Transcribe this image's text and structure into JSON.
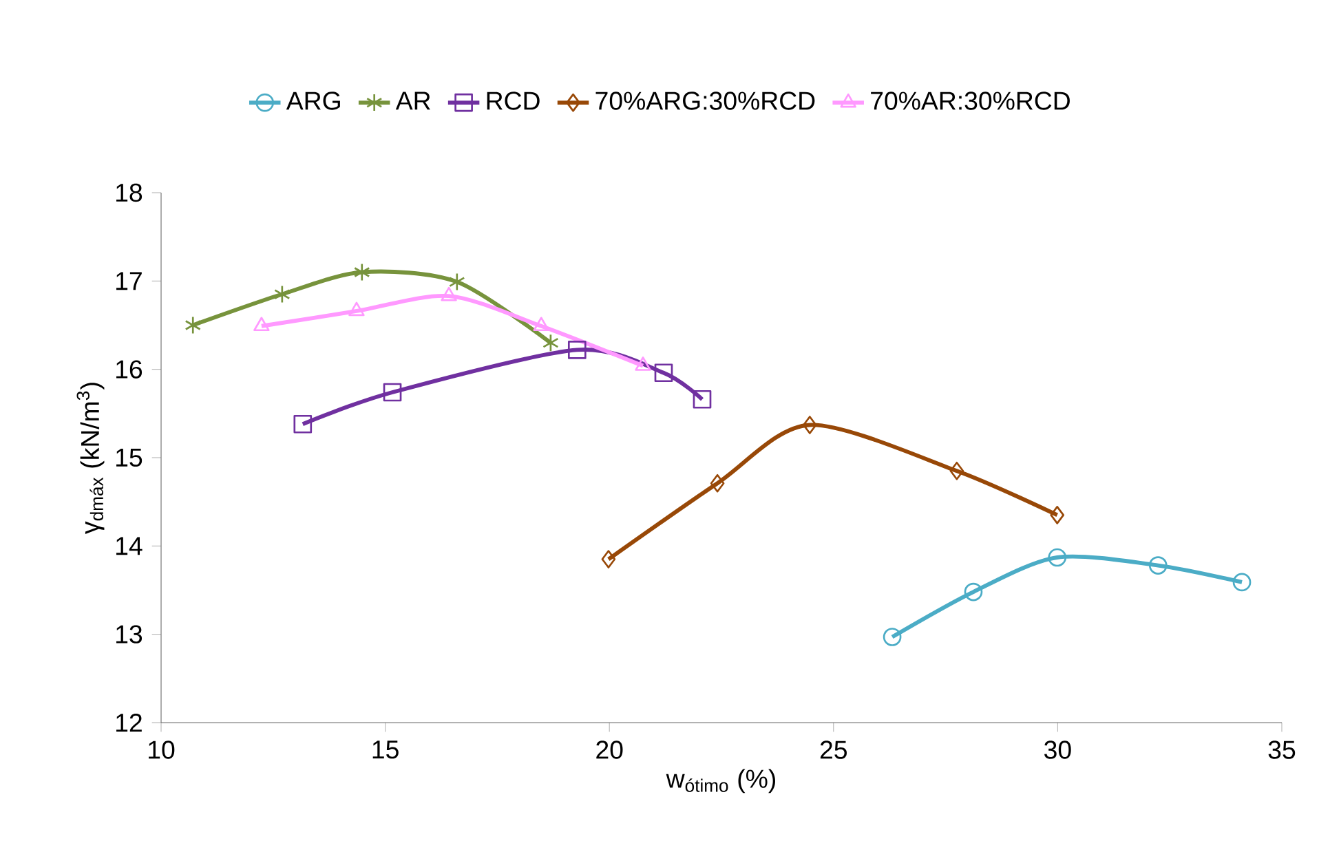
{
  "chart_data": {
    "type": "line",
    "xlabel": "w$_{ótimo}$ (%)",
    "ylabel": "γ$_{dmáx}$ (kN/m$^{3}$)",
    "xlim": [
      10,
      35
    ],
    "xticks": [
      10,
      15,
      20,
      25,
      30,
      35
    ],
    "ylim": [
      12,
      18
    ],
    "yticks": [
      12,
      13,
      14,
      15,
      16,
      17,
      18
    ],
    "grid": false,
    "legend": "top",
    "series": [
      {
        "name": "ARG",
        "color": "#4bacc6",
        "marker": "circle",
        "x": [
          26.31,
          28.12,
          29.99,
          32.24,
          34.11
        ],
        "values": [
          12.97,
          13.48,
          13.87,
          13.78,
          13.59
        ]
      },
      {
        "name": "AR",
        "color": "#77933c",
        "marker": "cross",
        "x": [
          10.71,
          12.7,
          14.48,
          16.6,
          18.69
        ],
        "values": [
          16.5,
          16.85,
          17.1,
          16.99,
          16.3
        ]
      },
      {
        "name": "RCD",
        "color": "#7030a0",
        "marker": "square",
        "x": [
          13.16,
          15.16,
          19.28,
          21.21,
          22.07
        ],
        "values": [
          15.38,
          15.74,
          16.22,
          15.96,
          15.66
        ]
      },
      {
        "name": "70%ARG:30%RCD",
        "color": "#984807",
        "marker": "diamond",
        "x": [
          19.98,
          22.41,
          24.47,
          27.75,
          29.99
        ],
        "values": [
          13.85,
          14.71,
          15.37,
          14.85,
          14.35
        ]
      },
      {
        "name": "70%AR:30%RCD",
        "color": "#ff99ff",
        "marker": "triangle",
        "x": [
          12.24,
          14.36,
          16.42,
          18.48,
          20.75
        ],
        "values": [
          16.49,
          16.66,
          16.83,
          16.49,
          16.04
        ]
      }
    ]
  }
}
